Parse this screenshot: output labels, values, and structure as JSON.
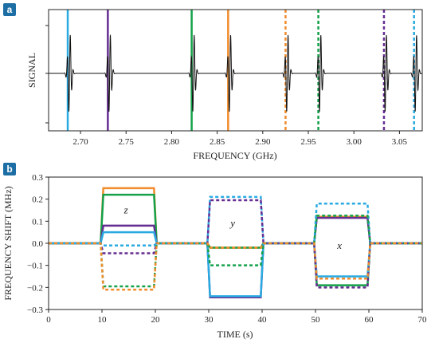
{
  "colors": {
    "cyan": "#29abe2",
    "purple": "#662d91",
    "green": "#14a14a",
    "orange": "#f08c2b",
    "badge": "#1c6ea4",
    "signal": "#111111"
  },
  "chart_data": [
    {
      "panel": "a",
      "type": "line",
      "xlabel": "FREQUENCY (GHz)",
      "ylabel": "SIGNAL",
      "xlim": [
        2.665,
        3.075
      ],
      "xticks": [
        2.7,
        2.75,
        2.8,
        2.85,
        2.9,
        2.95,
        3.0,
        3.05
      ],
      "xtick_labels": [
        "2.70",
        "2.75",
        "2.80",
        "2.85",
        "2.90",
        "2.95",
        "3.00",
        "3.05"
      ],
      "resonances_ghz": [
        2.688,
        2.732,
        2.824,
        2.864,
        2.927,
        2.963,
        3.035,
        3.068
      ],
      "markers": [
        {
          "x": 2.686,
          "color": "cyan",
          "style": "solid"
        },
        {
          "x": 2.73,
          "color": "purple",
          "style": "solid"
        },
        {
          "x": 2.822,
          "color": "green",
          "style": "solid"
        },
        {
          "x": 2.862,
          "color": "orange",
          "style": "solid"
        },
        {
          "x": 2.925,
          "color": "orange",
          "style": "dashed"
        },
        {
          "x": 2.961,
          "color": "green",
          "style": "dashed"
        },
        {
          "x": 3.033,
          "color": "purple",
          "style": "dashed"
        },
        {
          "x": 3.066,
          "color": "cyan",
          "style": "dashed"
        }
      ]
    },
    {
      "panel": "b",
      "type": "line",
      "xlabel": "TIME (s)",
      "ylabel": "FREQUENCY SHIFT (MHz)",
      "xlim": [
        0,
        70
      ],
      "ylim": [
        -0.3,
        0.3
      ],
      "xticks": [
        0,
        10,
        20,
        30,
        40,
        50,
        60,
        70
      ],
      "xtick_labels": [
        "0",
        "10",
        "20",
        "30",
        "40",
        "50",
        "60",
        "70"
      ],
      "yticks": [
        -0.3,
        -0.2,
        -0.1,
        0.0,
        0.1,
        0.2,
        0.3
      ],
      "ytick_labels": [
        "−0.3",
        "−0.2",
        "−0.1",
        "0.0",
        "0.1",
        "0.2",
        "0.3"
      ],
      "window_labels": [
        {
          "text": "z",
          "t": 14.5,
          "v": 0.15
        },
        {
          "text": "y",
          "t": 34.5,
          "v": 0.09
        },
        {
          "text": "x",
          "t": 54.5,
          "v": -0.01
        }
      ],
      "series": [
        {
          "color": "orange",
          "style": "solid",
          "levels": [
            0.25,
            -0.02,
            0.12
          ]
        },
        {
          "color": "green",
          "style": "solid",
          "levels": [
            0.22,
            -0.02,
            -0.19
          ]
        },
        {
          "color": "purple",
          "style": "solid",
          "levels": [
            0.08,
            -0.245,
            0.115
          ]
        },
        {
          "color": "cyan",
          "style": "solid",
          "levels": [
            0.05,
            -0.24,
            -0.15
          ]
        },
        {
          "color": "cyan",
          "style": "dashed",
          "levels": [
            -0.01,
            0.21,
            0.18
          ]
        },
        {
          "color": "purple",
          "style": "dashed",
          "levels": [
            -0.045,
            0.195,
            -0.2
          ]
        },
        {
          "color": "green",
          "style": "dashed",
          "levels": [
            -0.195,
            -0.1,
            0.125
          ]
        },
        {
          "color": "orange",
          "style": "dashed",
          "levels": [
            -0.21,
            -0.02,
            -0.16
          ]
        }
      ]
    }
  ]
}
